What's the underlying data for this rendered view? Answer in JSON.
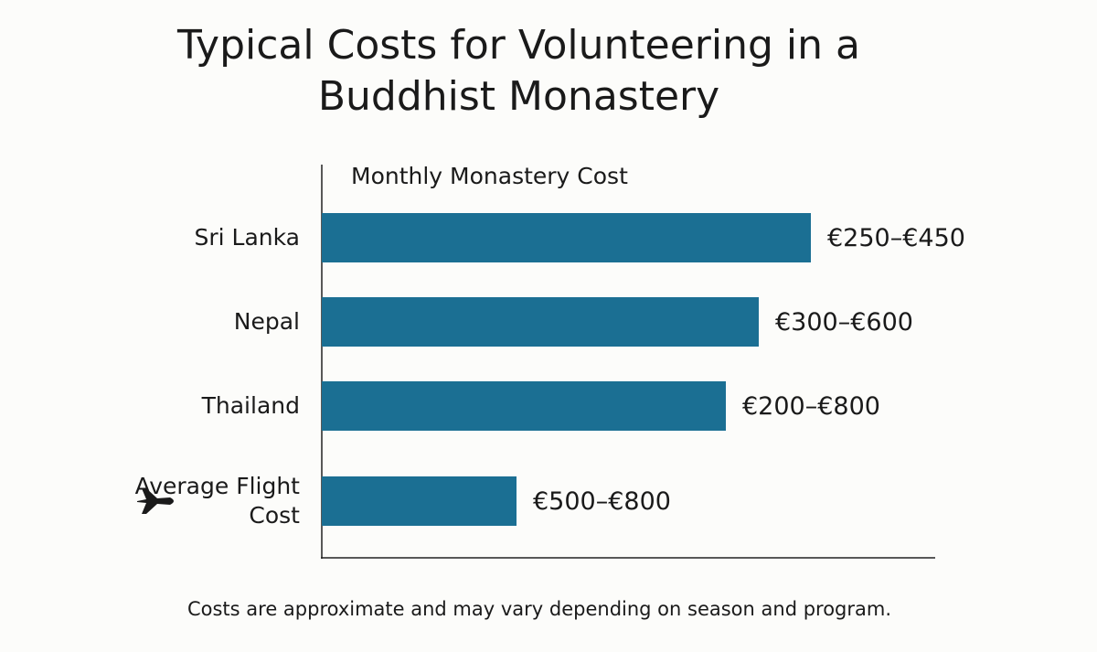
{
  "chart_data": {
    "type": "bar",
    "orientation": "horizontal",
    "title": "Typical Costs for Volunteering in a Buddhist Monastery",
    "x_label": "Monthly Monastery Cost",
    "categories": [
      "Sri Lanka",
      "Nepal",
      "Thailand",
      "Average Flight Cost"
    ],
    "values": [
      535,
      478,
      442,
      213
    ],
    "range_labels": [
      "€250–€450",
      "€300–€600",
      "€200–€800",
      "€500–€800"
    ],
    "color": "#1b6f93",
    "xlim": [
      0,
      670
    ],
    "footnote": "Costs are approximate and may vary depending on season and program."
  }
}
